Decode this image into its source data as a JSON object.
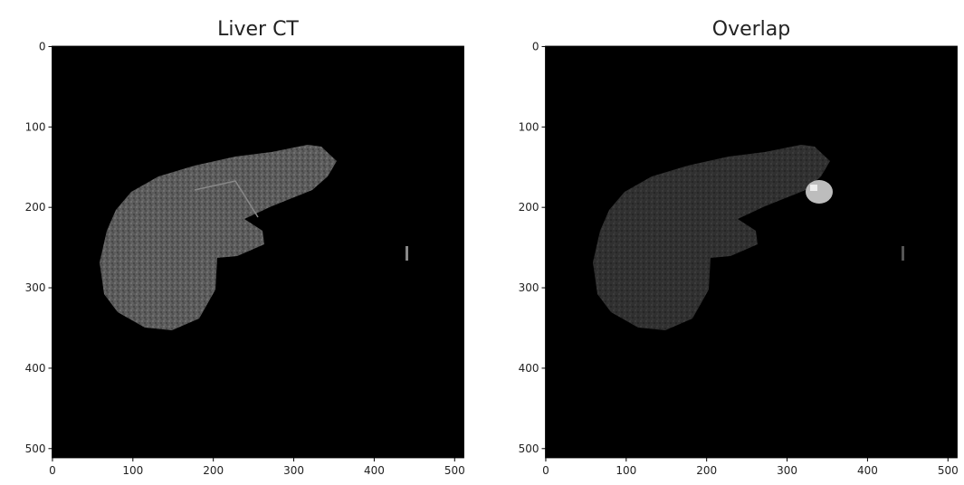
{
  "chart_data": [
    {
      "type": "image",
      "title": "Liver CT",
      "xlim": [
        -0.5,
        511.5
      ],
      "ylim": [
        511.5,
        -0.5
      ],
      "xticks": [
        0,
        100,
        200,
        300,
        400,
        500
      ],
      "yticks": [
        0,
        100,
        200,
        300,
        400,
        500
      ]
    },
    {
      "type": "image",
      "title": "Overlap",
      "xlim": [
        -0.5,
        511.5
      ],
      "ylim": [
        511.5,
        -0.5
      ],
      "xticks": [
        0,
        100,
        200,
        300,
        400,
        500
      ],
      "yticks": [
        0,
        100,
        200,
        300,
        400,
        500
      ]
    }
  ]
}
